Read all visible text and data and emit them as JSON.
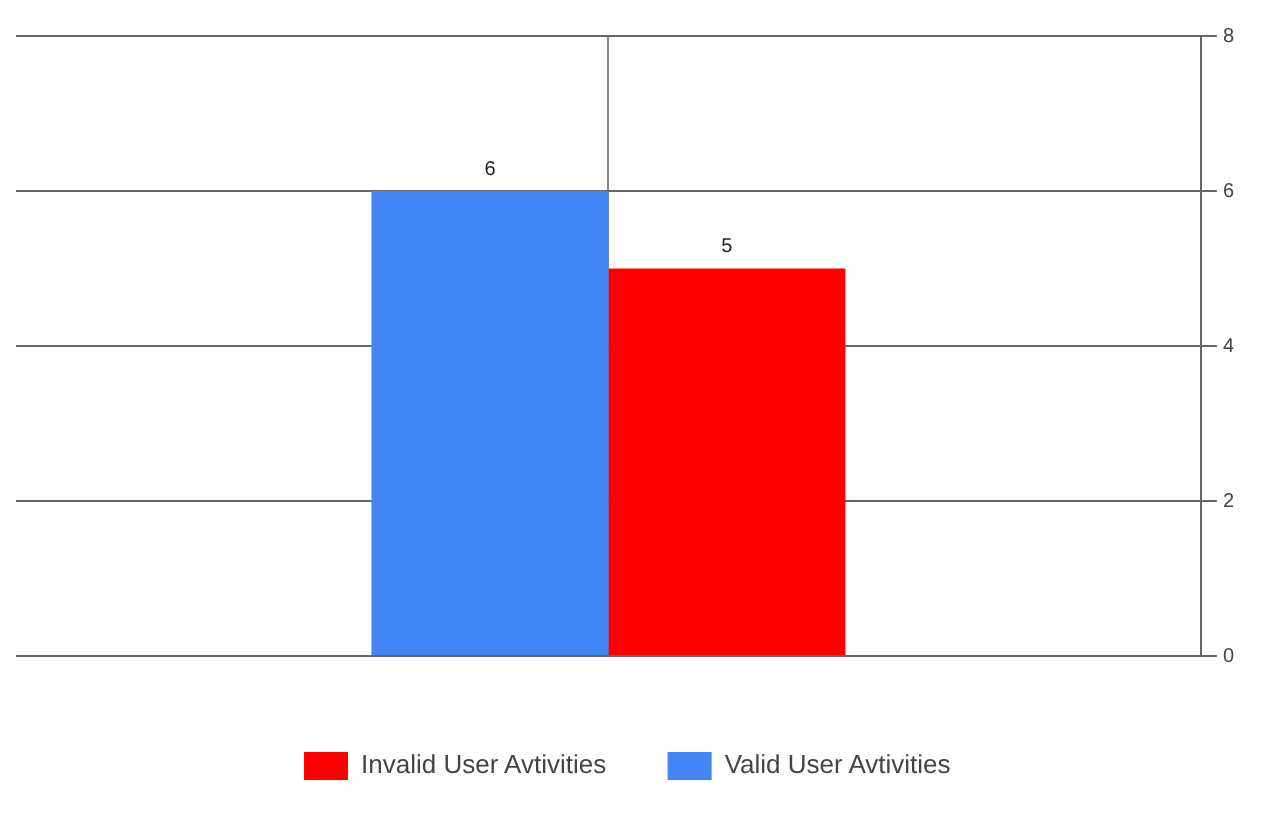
{
  "chart_data": {
    "type": "bar",
    "categories": [
      null
    ],
    "series": [
      {
        "name": "Valid User Avtivities",
        "color": "#4285f4",
        "values": [
          6
        ]
      },
      {
        "name": "Invalid User Avtivities",
        "color": "#ff0000",
        "values": [
          5
        ]
      }
    ],
    "ylim": [
      0,
      8
    ],
    "yticks": [
      0,
      2,
      4,
      6,
      8
    ],
    "grid": true,
    "legend": "bottom",
    "data_labels": true
  }
}
